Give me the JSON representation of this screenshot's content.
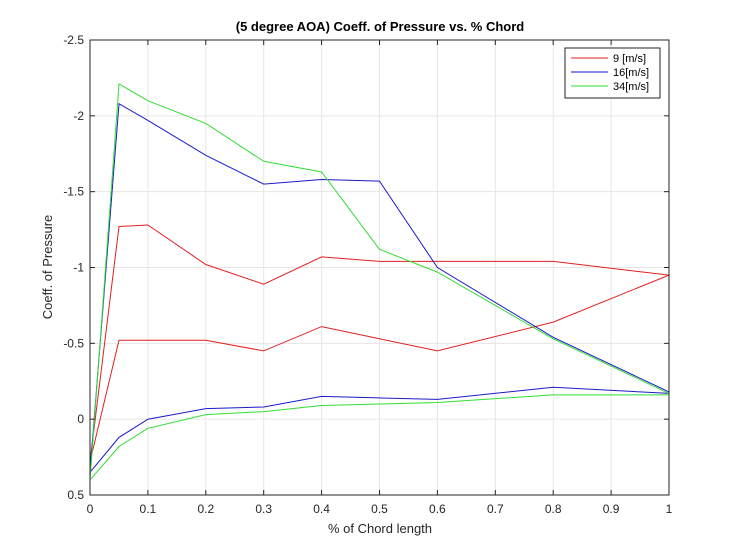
{
  "chart_data": {
    "type": "line",
    "title": "(5 degree AOA) Coeff. of Pressure vs. % Chord",
    "xlabel": "% of Chord length",
    "ylabel": "Coeff. of Pressure",
    "xlim": [
      0,
      1
    ],
    "ylim": [
      -2.5,
      0.5
    ],
    "y_reversed": true,
    "grid": true,
    "legend_position": "top-right",
    "xticks": [
      "0",
      "0.1",
      "0.2",
      "0.3",
      "0.4",
      "0.5",
      "0.6",
      "0.7",
      "0.8",
      "0.9",
      "1"
    ],
    "xtick_values": [
      0,
      0.1,
      0.2,
      0.3,
      0.4,
      0.5,
      0.6,
      0.7,
      0.8,
      0.9,
      1
    ],
    "yticks": [
      "-2.5",
      "-2",
      "-1.5",
      "-1",
      "-0.5",
      "0",
      "0.5"
    ],
    "ytick_values": [
      -2.5,
      -2,
      -1.5,
      -1,
      -0.5,
      0,
      0.5
    ],
    "series": [
      {
        "name": "9 [m/s]",
        "color": "#e02020",
        "x": [
          1,
          0.8,
          0.6,
          0.5,
          0.4,
          0.3,
          0.2,
          0.1,
          0.05,
          0,
          0.05,
          0.1,
          0.2,
          0.3,
          0.4,
          0.5,
          0.6,
          0.8,
          1
        ],
        "y": [
          -0.95,
          -1.04,
          -1.04,
          -1.04,
          -1.07,
          -0.89,
          -1.02,
          -1.28,
          -1.27,
          0.28,
          -0.52,
          -0.52,
          -0.52,
          -0.45,
          -0.61,
          -0.53,
          -0.45,
          -0.64,
          -0.95
        ]
      },
      {
        "name": "16[m/s]",
        "color": "#1a1acc",
        "x": [
          1,
          0.8,
          0.6,
          0.5,
          0.4,
          0.3,
          0.2,
          0.1,
          0.05,
          0,
          0.05,
          0.1,
          0.2,
          0.3,
          0.4,
          0.5,
          0.6,
          0.8,
          1
        ],
        "y": [
          -0.18,
          -0.54,
          -1.0,
          -1.57,
          -1.58,
          -1.55,
          -1.74,
          -1.97,
          -2.08,
          0.35,
          0.12,
          0.0,
          -0.07,
          -0.08,
          -0.15,
          -0.14,
          -0.13,
          -0.21,
          -0.17
        ]
      },
      {
        "name": "34[m/s]",
        "color": "#33dd33",
        "x": [
          1,
          0.8,
          0.6,
          0.5,
          0.4,
          0.3,
          0.2,
          0.1,
          0.05,
          0,
          0.05,
          0.1,
          0.2,
          0.3,
          0.4,
          0.5,
          0.6,
          0.8,
          1
        ],
        "y": [
          -0.17,
          -0.53,
          -0.97,
          -1.12,
          -1.63,
          -1.7,
          -1.95,
          -2.1,
          -2.21,
          0.4,
          0.18,
          0.06,
          -0.03,
          -0.05,
          -0.09,
          -0.1,
          -0.11,
          -0.16,
          -0.16
        ]
      }
    ]
  }
}
